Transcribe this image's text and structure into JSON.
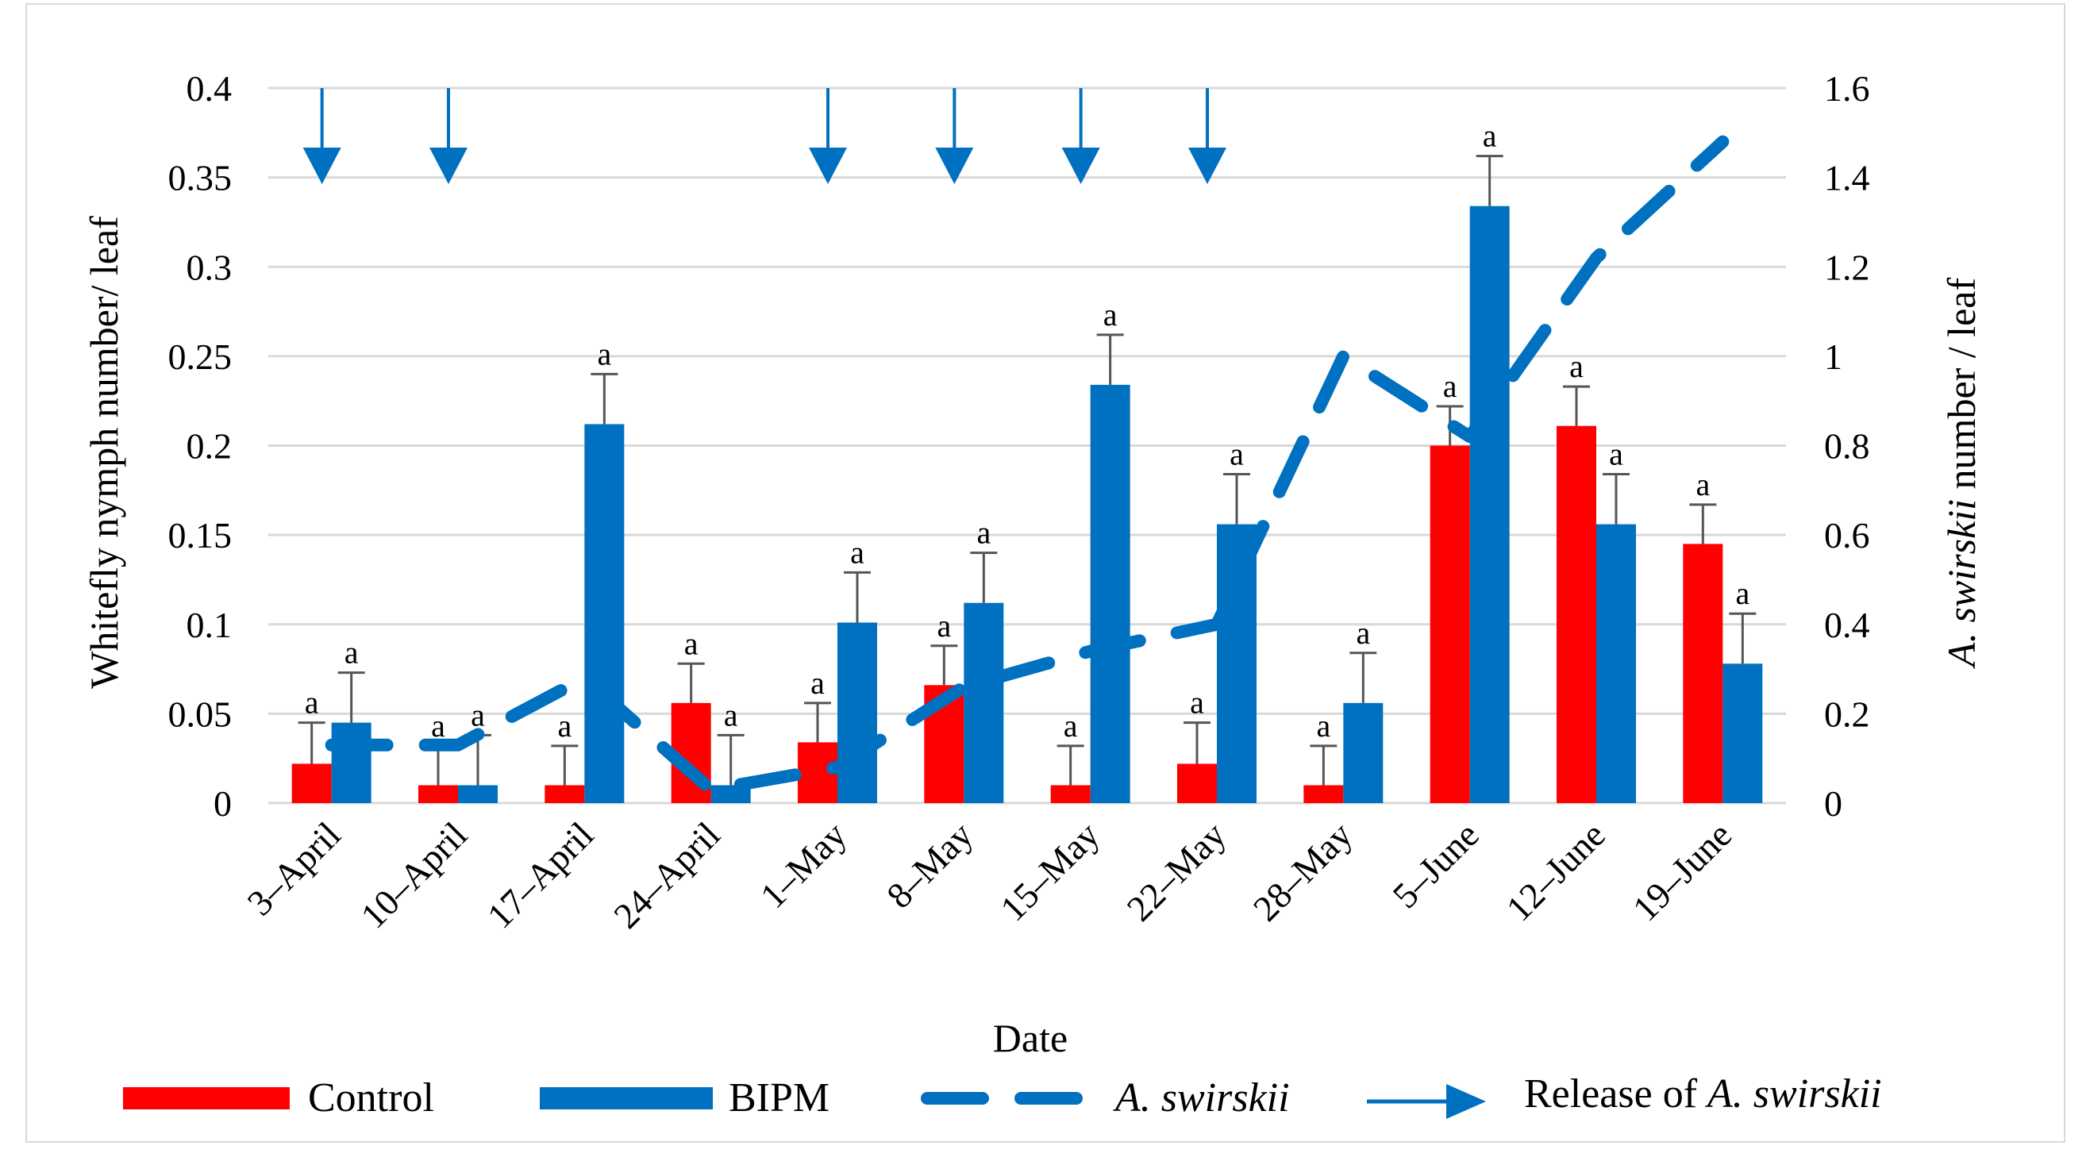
{
  "chart_data": {
    "type": "bar",
    "categories": [
      "3–April",
      "10–April",
      "17–April",
      "24–April",
      "1–May",
      "8–May",
      "15–May",
      "22–May",
      "28–May",
      "5–June",
      "12–June",
      "19–June"
    ],
    "series": [
      {
        "name": "Control",
        "axis": "left",
        "color": "#ff0000",
        "values": [
          0.022,
          0.01,
          0.01,
          0.056,
          0.034,
          0.066,
          0.01,
          0.022,
          0.01,
          0.2,
          0.211,
          0.145
        ],
        "errors": [
          0.023,
          0.022,
          0.022,
          0.022,
          0.022,
          0.022,
          0.022,
          0.023,
          0.022,
          0.022,
          0.022,
          0.022
        ],
        "sig_labels": [
          "a",
          "a",
          "a",
          "a",
          "a",
          "a",
          "a",
          "a",
          "a",
          "a",
          "a",
          "a"
        ]
      },
      {
        "name": "BIPM",
        "axis": "left",
        "color": "#0070c0",
        "values": [
          0.045,
          0.01,
          0.212,
          0.01,
          0.101,
          0.112,
          0.234,
          0.156,
          0.056,
          0.334,
          0.156,
          0.078
        ],
        "errors": [
          0.028,
          0.028,
          0.028,
          0.028,
          0.028,
          0.028,
          0.028,
          0.028,
          0.028,
          0.028,
          0.028,
          0.028
        ],
        "sig_labels": [
          "a",
          "a",
          "a",
          "a",
          "a",
          "a",
          "a",
          "a",
          "a",
          "a",
          "a",
          "a"
        ]
      },
      {
        "name": "A. swirskii",
        "axis": "right",
        "type": "line",
        "style": "dashed",
        "color": "#0070c0",
        "values": [
          0.13,
          0.13,
          0.28,
          0.03,
          0.08,
          0.26,
          0.34,
          0.4,
          1.0,
          0.82,
          1.22,
          1.48
        ]
      }
    ],
    "releases": [
      "3–April",
      "10–April",
      "1–May",
      "8–May",
      "15–May",
      "22–May"
    ],
    "ylim": [
      0,
      0.4
    ],
    "yticks": [
      "0",
      "0.05",
      "0.1",
      "0.15",
      "0.2",
      "0.25",
      "0.3",
      "0.35",
      "0.4"
    ],
    "y2lim": [
      0,
      1.6
    ],
    "y2ticks": [
      "0",
      "0.2",
      "0.4",
      "0.6",
      "0.8",
      "1",
      "1.2",
      "1.4",
      "1.6"
    ],
    "xlabel": "Date",
    "ylabel": "Whitefly nymph number/ leaf",
    "y2label_italic": "A. swirskii",
    "y2label_rest": " number / leaf",
    "gridlines": true,
    "legend": {
      "position": "bottom",
      "control": "Control",
      "bipm": "BIPM",
      "line": "A. swirskii",
      "release_prefix": "Release of ",
      "release_italic": "A. swirskii"
    }
  }
}
